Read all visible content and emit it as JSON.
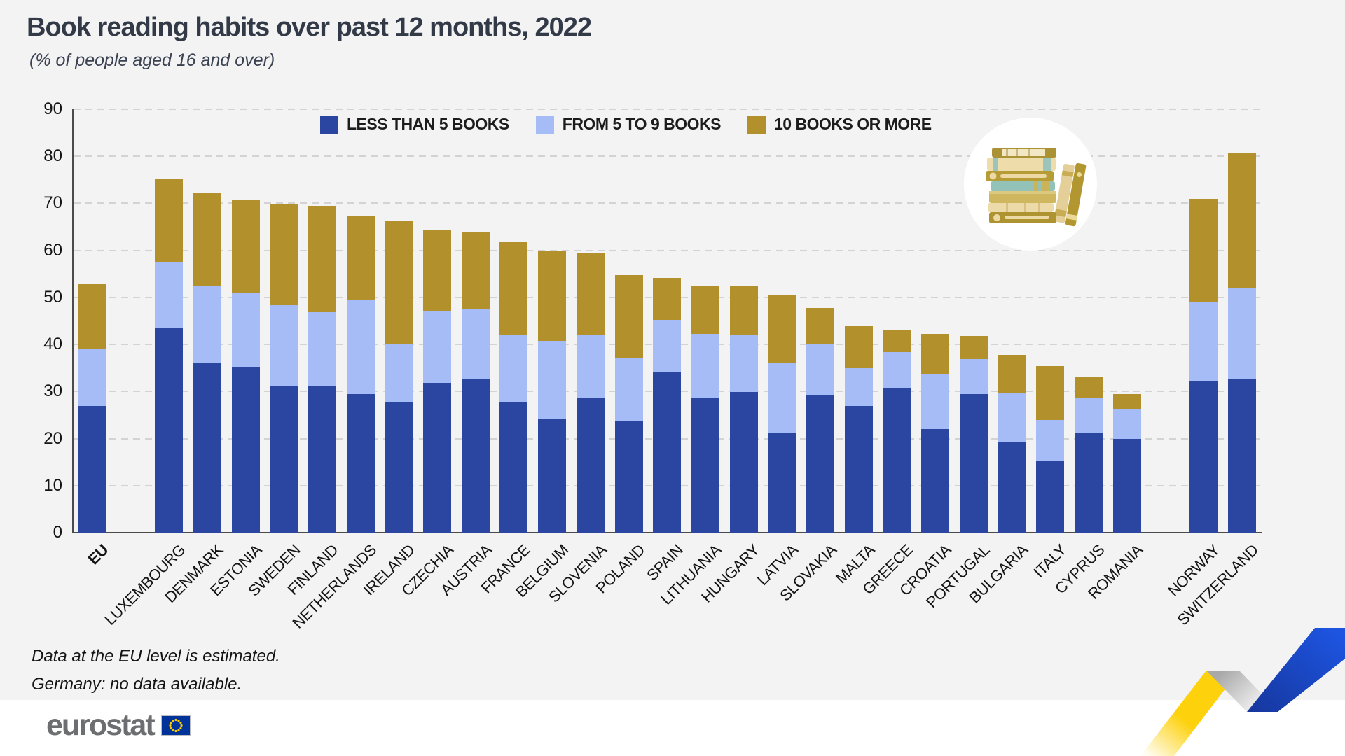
{
  "title": "Book reading habits over past 12 months, 2022",
  "subtitle": "(% of people aged 16 and over)",
  "footnotes": [
    "Data at the EU level is estimated.",
    "Germany: no data available."
  ],
  "logo": {
    "text": "eurostat",
    "flag_icon": "eu-flag-icon"
  },
  "badge_icon": "books-stack-illustration",
  "ribbon_icon": "eurostat-zigzag-ribbon",
  "colors": {
    "background": "#f3f3f4",
    "less_than_5_books": "#2b46a0",
    "from_5_to_9_books": "#a6bcf6",
    "ten_books_or_more": "#b2912c",
    "ribbon_yellow": "#fdd10c",
    "ribbon_blue": "#1d54e0",
    "flag_blue": "#003399",
    "flag_stars": "#ffcc00",
    "title_text": "#333a47"
  },
  "chart_data": {
    "type": "bar",
    "subtype": "stacked-vertical",
    "title": "Book reading habits over past 12 months, 2022",
    "subtitle": "(% of people aged 16 and over)",
    "unit": "%",
    "ylim": [
      0,
      90
    ],
    "ytick_step": 10,
    "grid": "horizontal-dashed",
    "legend_position": "top-inside",
    "categories": [
      {
        "label": "EU",
        "group": "eu"
      },
      {
        "label": "LUXEMBOURG",
        "group": "member"
      },
      {
        "label": "DENMARK",
        "group": "member"
      },
      {
        "label": "ESTONIA",
        "group": "member"
      },
      {
        "label": "SWEDEN",
        "group": "member"
      },
      {
        "label": "FINLAND",
        "group": "member"
      },
      {
        "label": "NETHERLANDS",
        "group": "member"
      },
      {
        "label": "IRELAND",
        "group": "member"
      },
      {
        "label": "CZECHIA",
        "group": "member"
      },
      {
        "label": "AUSTRIA",
        "group": "member"
      },
      {
        "label": "FRANCE",
        "group": "member"
      },
      {
        "label": "BELGIUM",
        "group": "member"
      },
      {
        "label": "SLOVENIA",
        "group": "member"
      },
      {
        "label": "POLAND",
        "group": "member"
      },
      {
        "label": "SPAIN",
        "group": "member"
      },
      {
        "label": "LITHUANIA",
        "group": "member"
      },
      {
        "label": "HUNGARY",
        "group": "member"
      },
      {
        "label": "LATVIA",
        "group": "member"
      },
      {
        "label": "SLOVAKIA",
        "group": "member"
      },
      {
        "label": "MALTA",
        "group": "member"
      },
      {
        "label": "GREECE",
        "group": "member"
      },
      {
        "label": "CROATIA",
        "group": "member"
      },
      {
        "label": "PORTUGAL",
        "group": "member"
      },
      {
        "label": "BULGARIA",
        "group": "member"
      },
      {
        "label": "ITALY",
        "group": "member"
      },
      {
        "label": "CYPRUS",
        "group": "member"
      },
      {
        "label": "ROMANIA",
        "group": "member"
      },
      {
        "label": "NORWAY",
        "group": "efta"
      },
      {
        "label": "SWITZERLAND",
        "group": "efta"
      }
    ],
    "series": [
      {
        "name": "LESS THAN 5 BOOKS",
        "color": "#2b46a0",
        "values": [
          26.9,
          43.5,
          36.0,
          35.1,
          31.3,
          31.2,
          29.5,
          27.9,
          31.8,
          32.7,
          27.9,
          24.2,
          28.7,
          23.7,
          34.2,
          28.6,
          29.9,
          21.2,
          29.3,
          26.9,
          30.7,
          22.0,
          29.5,
          19.4,
          15.4,
          21.2,
          19.9,
          32.2,
          32.7
        ]
      },
      {
        "name": "FROM 5 TO 9 BOOKS",
        "color": "#a6bcf6",
        "values": [
          12.2,
          14.0,
          16.5,
          15.9,
          17.0,
          15.6,
          20.1,
          12.2,
          15.2,
          14.9,
          14.0,
          16.6,
          13.3,
          13.4,
          11.0,
          13.6,
          12.2,
          14.9,
          10.7,
          8.1,
          7.7,
          11.8,
          7.4,
          10.4,
          8.6,
          7.3,
          6.5,
          16.9,
          19.3
        ]
      },
      {
        "name": "10 BOOKS OR MORE",
        "color": "#b2912c",
        "values": [
          13.7,
          17.8,
          19.7,
          19.8,
          21.4,
          22.7,
          17.8,
          26.1,
          17.4,
          16.2,
          19.9,
          19.2,
          17.4,
          17.6,
          8.9,
          10.2,
          10.3,
          14.3,
          7.8,
          8.9,
          4.7,
          8.4,
          4.9,
          8.0,
          11.4,
          4.6,
          3.0,
          21.9,
          28.7
        ]
      }
    ],
    "totals": [
      52.8,
      75.3,
      72.2,
      70.8,
      69.7,
      69.5,
      67.4,
      66.2,
      64.4,
      63.8,
      61.8,
      60.0,
      59.4,
      54.7,
      54.1,
      52.4,
      52.4,
      50.4,
      47.8,
      43.9,
      43.1,
      42.2,
      41.8,
      37.8,
      35.4,
      33.1,
      29.4,
      71.0,
      80.7
    ]
  }
}
